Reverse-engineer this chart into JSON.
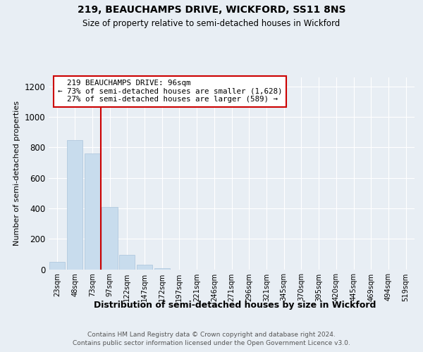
{
  "title1": "219, BEAUCHAMPS DRIVE, WICKFORD, SS11 8NS",
  "title2": "Size of property relative to semi-detached houses in Wickford",
  "xlabel": "Distribution of semi-detached houses by size in Wickford",
  "ylabel": "Number of semi-detached properties",
  "footer": "Contains HM Land Registry data © Crown copyright and database right 2024.\nContains public sector information licensed under the Open Government Licence v3.0.",
  "bar_labels": [
    "23sqm",
    "48sqm",
    "73sqm",
    "97sqm",
    "122sqm",
    "147sqm",
    "172sqm",
    "197sqm",
    "221sqm",
    "246sqm",
    "271sqm",
    "296sqm",
    "321sqm",
    "345sqm",
    "370sqm",
    "395sqm",
    "420sqm",
    "445sqm",
    "469sqm",
    "494sqm",
    "519sqm"
  ],
  "bar_values": [
    50,
    850,
    760,
    410,
    95,
    30,
    5,
    0,
    0,
    0,
    0,
    0,
    0,
    0,
    0,
    0,
    0,
    0,
    0,
    0,
    0
  ],
  "bar_color": "#c8dced",
  "bar_edge_color": "#aac4db",
  "property_label": "219 BEAUCHAMPS DRIVE: 96sqm",
  "annotation_smaller_pct": "73%",
  "annotation_smaller_n": "1,628",
  "annotation_larger_pct": "27%",
  "annotation_larger_n": "589",
  "vline_color": "#cc0000",
  "box_edge_color": "#cc0000",
  "ylim": [
    0,
    1260
  ],
  "yticks": [
    0,
    200,
    400,
    600,
    800,
    1000,
    1200
  ],
  "bg_color": "#e8eef4",
  "plot_bg_color": "#e8eef4",
  "grid_color": "#ffffff"
}
